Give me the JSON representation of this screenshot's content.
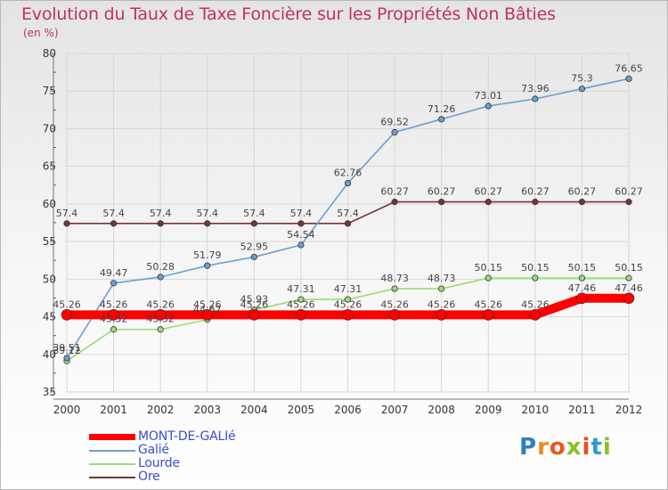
{
  "title": "Evolution du Taux de Taxe Foncière sur les Propriétés Non Bâties",
  "unit_label": "(en %)",
  "logo": {
    "text": "Proxiti",
    "letters": [
      "P",
      "r",
      "o",
      "x",
      "i",
      "t",
      "i"
    ],
    "colors": [
      "#2d7fc1",
      "#f08a1c",
      "#e8561e",
      "#8bbf2a",
      "#e94f24",
      "#2d9ad6",
      "#8bbf2a"
    ]
  },
  "chart_data": {
    "type": "line",
    "title": "Evolution du Taux de Taxe Foncière sur les Propriétés Non Bâties",
    "ylabel": "(en %)",
    "xlabel": "",
    "x": [
      "2000",
      "2001",
      "2002",
      "2003",
      "2004",
      "2005",
      "2006",
      "2007",
      "2008",
      "2009",
      "2010",
      "2011",
      "2012"
    ],
    "ylim": [
      35,
      80
    ],
    "yticks": [
      "35",
      "40",
      "45",
      "50",
      "55",
      "60",
      "65",
      "70",
      "75",
      "80"
    ],
    "grid": true,
    "legend_position": "bottom-left",
    "series": [
      {
        "name": "MONT-DE-GALIé",
        "color": "#ff0000",
        "values": [
          45.26,
          45.26,
          45.26,
          45.26,
          45.26,
          45.26,
          45.26,
          45.26,
          45.26,
          45.26,
          45.26,
          47.46,
          47.46
        ],
        "labels": [
          "45.26",
          "45.26",
          "45.26",
          "45.26",
          "45.26",
          "45.26",
          "45.26",
          "45.26",
          "45.26",
          "45.26",
          "45.26",
          "47.46",
          "47.46"
        ]
      },
      {
        "name": "Galié",
        "color": "#6a9fd4",
        "values": [
          39.51,
          49.47,
          50.28,
          51.79,
          52.95,
          54.54,
          62.76,
          69.52,
          71.26,
          73.01,
          73.96,
          75.3,
          76.65
        ],
        "labels": [
          "39.51",
          "49.47",
          "50.28",
          "51.79",
          "52.95",
          "54.54",
          "62.76",
          "69.52",
          "71.26",
          "73.01",
          "73.96",
          "75.3",
          "76.65"
        ]
      },
      {
        "name": "Lourde",
        "color": "#99dd77",
        "values": [
          39.12,
          43.32,
          43.32,
          44.62,
          45.93,
          47.31,
          47.31,
          48.73,
          48.73,
          50.15,
          50.15,
          50.15,
          50.15
        ],
        "labels": [
          "39.12",
          "43.32",
          "43.32",
          "44.62",
          "45.93",
          "47.31",
          "47.31",
          "48.73",
          "48.73",
          "50.15",
          "50.15",
          "50.15",
          "50.15"
        ]
      },
      {
        "name": "Ore",
        "color": "#7a3535",
        "values": [
          57.4,
          57.4,
          57.4,
          57.4,
          57.4,
          57.4,
          57.4,
          60.27,
          60.27,
          60.27,
          60.27,
          60.27,
          60.27
        ],
        "labels": [
          "57.4",
          "57.4",
          "57.4",
          "57.4",
          "57.4",
          "57.4",
          "57.4",
          "60.27",
          "60.27",
          "60.27",
          "60.27",
          "60.27",
          "60.27"
        ]
      }
    ]
  }
}
